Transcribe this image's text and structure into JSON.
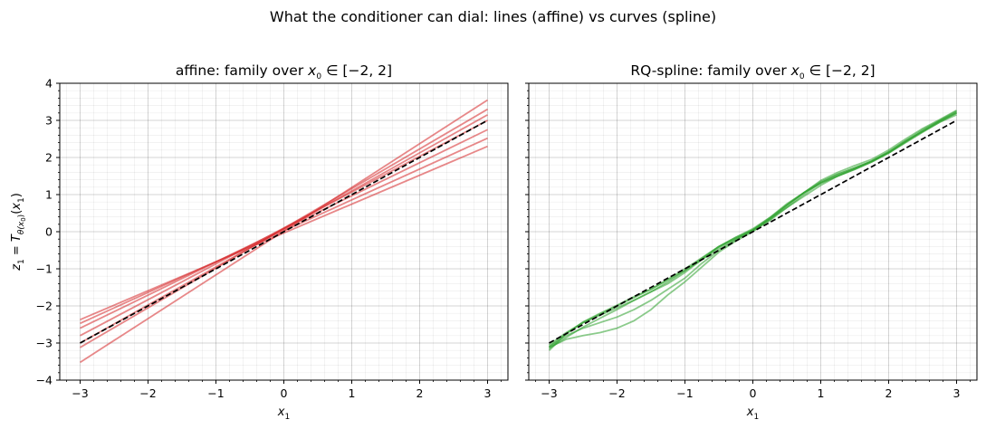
{
  "figure": {
    "suptitle": "What the conditioner can dial: lines (affine) vs curves (spline)"
  },
  "chart_data": [
    {
      "type": "line",
      "title": "affine: family over x0 ∈ [−2, 2]",
      "xlabel": "x1",
      "ylabel": "z1 = Tθ(x0)(x1)",
      "xlim": [
        -3.3,
        3.3
      ],
      "ylim": [
        -4,
        4
      ],
      "xticks": [
        -3,
        -2,
        -1,
        0,
        1,
        2,
        3
      ],
      "yticks": [
        -4,
        -3,
        -2,
        -1,
        0,
        1,
        2,
        3,
        4
      ],
      "grid": true,
      "series_color": "#d62728",
      "series_alpha": 0.55,
      "x": [
        -3,
        3
      ],
      "series": [
        {
          "values": [
            -2.37,
            2.3
          ]
        },
        {
          "values": [
            -2.47,
            2.52
          ]
        },
        {
          "values": [
            -2.6,
            2.75
          ]
        },
        {
          "values": [
            -2.8,
            3.0
          ]
        },
        {
          "values": [
            -3.0,
            3.15
          ]
        },
        {
          "values": [
            -3.12,
            3.3
          ]
        },
        {
          "values": [
            -3.52,
            3.55
          ]
        }
      ],
      "reference": {
        "style": "dashed",
        "color": "#000000",
        "x": [
          -3,
          3
        ],
        "values": [
          -3,
          3
        ]
      }
    },
    {
      "type": "line",
      "title": "RQ-spline: family over x0 ∈ [−2, 2]",
      "xlabel": "x1",
      "ylabel": "",
      "xlim": [
        -3.3,
        3.3
      ],
      "ylim": [
        -4,
        4
      ],
      "xticks": [
        -3,
        -2,
        -1,
        0,
        1,
        2,
        3
      ],
      "yticks": [
        -4,
        -3,
        -2,
        -1,
        0,
        1,
        2,
        3,
        4
      ],
      "grid": true,
      "series_color": "#2ca02c",
      "series_alpha": 0.55,
      "x": [
        -3.0,
        -2.75,
        -2.5,
        -2.25,
        -2.0,
        -1.75,
        -1.5,
        -1.25,
        -1.0,
        -0.75,
        -0.5,
        -0.25,
        0.0,
        0.25,
        0.5,
        0.75,
        1.0,
        1.25,
        1.5,
        1.75,
        2.0,
        2.25,
        2.5,
        2.75,
        3.0
      ],
      "series": [
        {
          "values": [
            -3.15,
            -2.85,
            -2.57,
            -2.33,
            -2.1,
            -1.85,
            -1.62,
            -1.35,
            -1.05,
            -0.75,
            -0.45,
            -0.2,
            0.05,
            0.35,
            0.65,
            0.95,
            1.25,
            1.5,
            1.7,
            1.9,
            2.15,
            2.45,
            2.7,
            2.95,
            3.15
          ]
        },
        {
          "values": [
            -3.2,
            -2.75,
            -2.45,
            -2.25,
            -2.05,
            -1.85,
            -1.62,
            -1.4,
            -1.1,
            -0.75,
            -0.4,
            -0.15,
            0.05,
            0.32,
            0.7,
            1.05,
            1.35,
            1.55,
            1.72,
            1.9,
            2.15,
            2.45,
            2.75,
            3.0,
            3.25
          ]
        },
        {
          "values": [
            -3.1,
            -2.75,
            -2.43,
            -2.2,
            -1.98,
            -1.75,
            -1.55,
            -1.3,
            -1.05,
            -0.72,
            -0.4,
            -0.18,
            0.02,
            0.3,
            0.65,
            1.0,
            1.32,
            1.55,
            1.72,
            1.9,
            2.13,
            2.42,
            2.72,
            2.98,
            3.2
          ]
        },
        {
          "values": [
            -3.1,
            -2.8,
            -2.6,
            -2.45,
            -2.3,
            -2.1,
            -1.85,
            -1.55,
            -1.25,
            -0.85,
            -0.5,
            -0.22,
            0.05,
            0.38,
            0.75,
            1.05,
            1.3,
            1.5,
            1.68,
            1.88,
            2.12,
            2.4,
            2.68,
            2.95,
            3.2
          ]
        },
        {
          "values": [
            -3.12,
            -2.9,
            -2.8,
            -2.72,
            -2.6,
            -2.4,
            -2.1,
            -1.7,
            -1.35,
            -0.95,
            -0.55,
            -0.25,
            0.0,
            0.35,
            0.72,
            1.05,
            1.32,
            1.5,
            1.68,
            1.88,
            2.12,
            2.42,
            2.7,
            2.98,
            3.22
          ]
        },
        {
          "values": [
            -3.05,
            -2.72,
            -2.45,
            -2.22,
            -2.0,
            -1.78,
            -1.55,
            -1.28,
            -1.0,
            -0.7,
            -0.4,
            -0.15,
            0.08,
            0.38,
            0.72,
            1.05,
            1.38,
            1.6,
            1.78,
            1.95,
            2.2,
            2.5,
            2.78,
            3.02,
            3.27
          ]
        }
      ],
      "reference": {
        "style": "dashed",
        "color": "#000000",
        "x": [
          -3,
          3
        ],
        "values": [
          -3,
          3
        ]
      }
    }
  ]
}
